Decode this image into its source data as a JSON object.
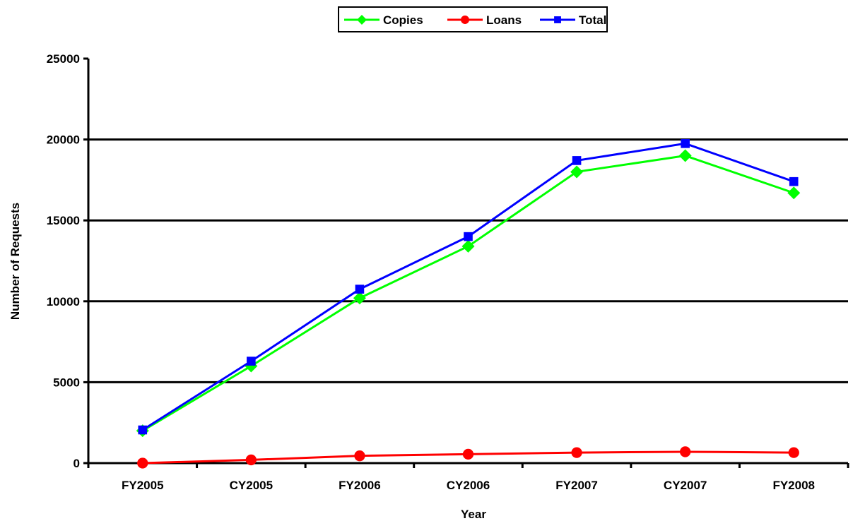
{
  "chart_data": {
    "type": "line",
    "title": "",
    "xlabel": "Year",
    "ylabel": "Number of Requests",
    "categories": [
      "FY2005",
      "CY2005",
      "FY2006",
      "CY2006",
      "FY2007",
      "CY2007",
      "FY2008"
    ],
    "ylim": [
      0,
      25000
    ],
    "yticks": [
      0,
      5000,
      10000,
      15000,
      20000,
      25000
    ],
    "grid": "horizontal",
    "legend": "top-center",
    "series": [
      {
        "name": "Copies",
        "color": "#00ff00",
        "marker": "diamond",
        "values": [
          2000,
          6000,
          10200,
          13400,
          18000,
          19000,
          16700
        ]
      },
      {
        "name": "Loans",
        "color": "#ff0000",
        "marker": "circle",
        "values": [
          0,
          200,
          450,
          550,
          650,
          700,
          650
        ]
      },
      {
        "name": "Total",
        "color": "#0000ff",
        "marker": "square",
        "values": [
          2050,
          6300,
          10750,
          14000,
          18700,
          19750,
          17400
        ]
      }
    ]
  }
}
